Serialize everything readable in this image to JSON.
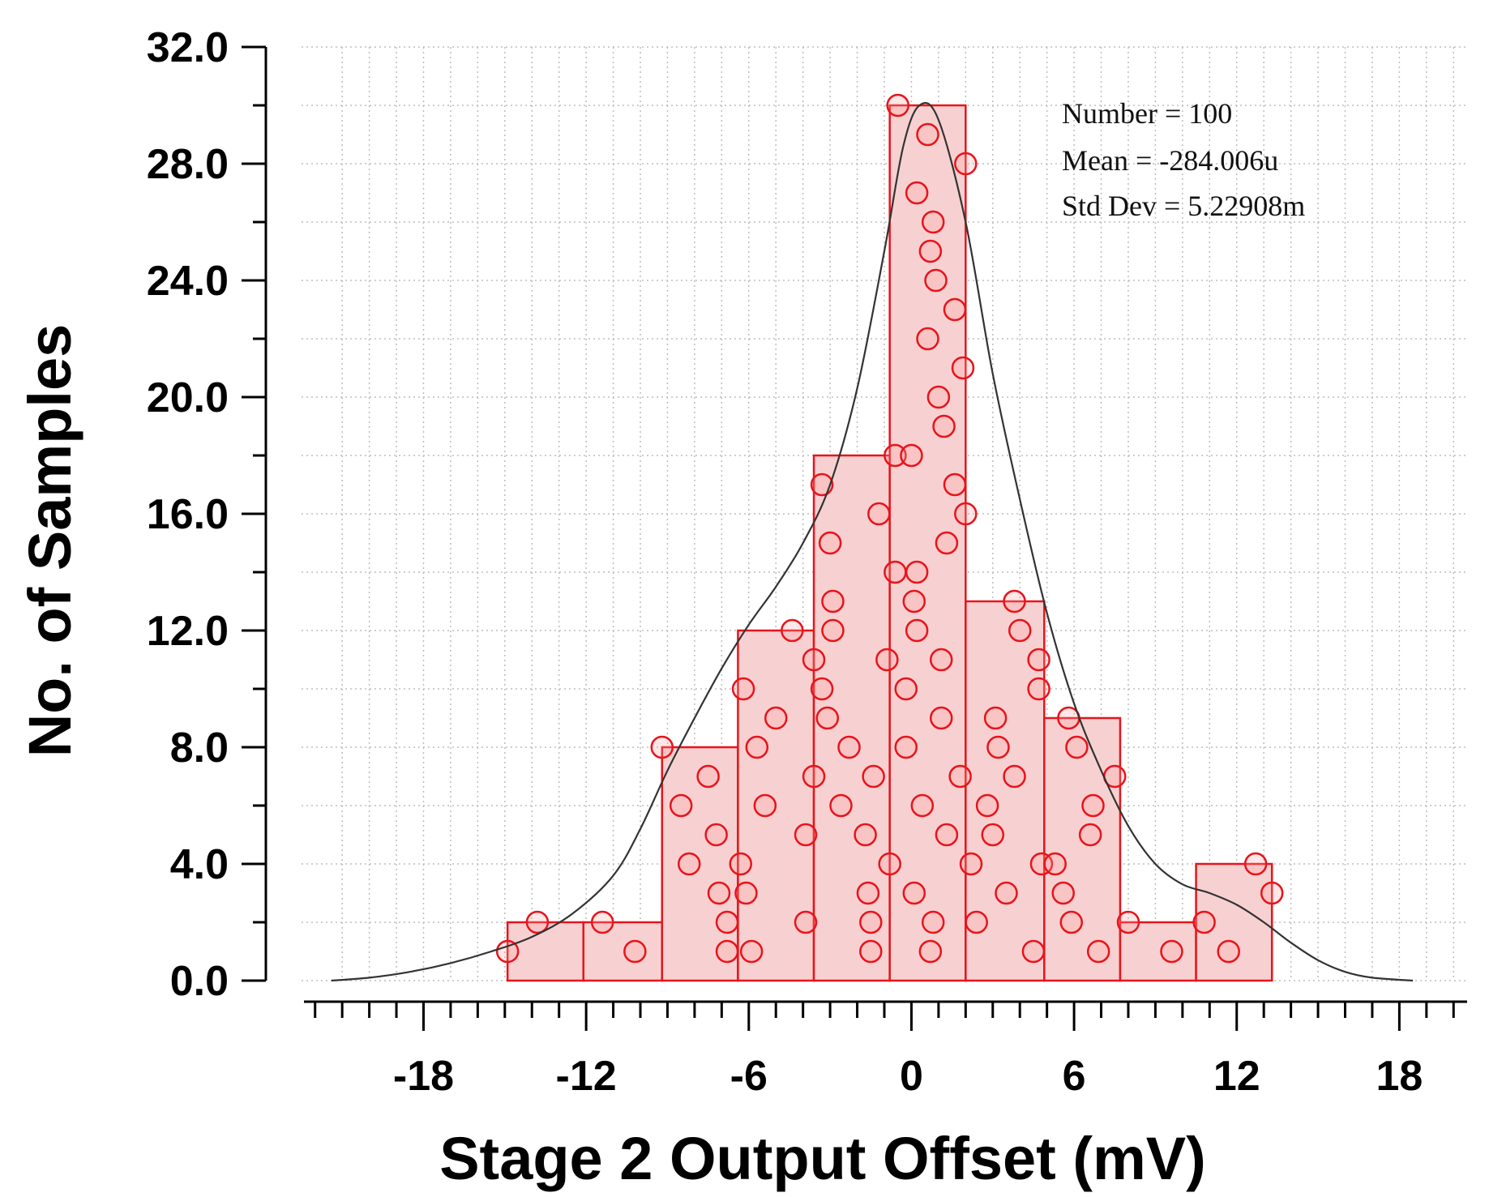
{
  "chart_data": {
    "type": "histogram",
    "xlabel": "Stage 2 Output Offset (mV)",
    "ylabel": "No. of Samples",
    "xlim": [
      -22.5,
      20.5
    ],
    "ylim": [
      0,
      32
    ],
    "x_ticks": [
      -18,
      -12,
      -6,
      0,
      6,
      12,
      18
    ],
    "x_tick_labels": [
      "-18",
      "-12",
      "-6",
      "0",
      "6",
      "12",
      "18"
    ],
    "y_ticks": [
      0,
      4,
      8,
      12,
      16,
      20,
      24,
      28,
      32
    ],
    "y_tick_labels": [
      "0.0",
      "4.0",
      "8.0",
      "12.0",
      "16.0",
      "20.0",
      "24.0",
      "28.0",
      "32.0"
    ],
    "grid": true,
    "bins": [
      {
        "x0": -14.9,
        "x1": -12.1,
        "count": 2
      },
      {
        "x0": -12.1,
        "x1": -9.2,
        "count": 2
      },
      {
        "x0": -9.2,
        "x1": -6.4,
        "count": 8
      },
      {
        "x0": -6.4,
        "x1": -3.6,
        "count": 12
      },
      {
        "x0": -3.6,
        "x1": -0.8,
        "count": 18
      },
      {
        "x0": -0.8,
        "x1": 2.0,
        "count": 30
      },
      {
        "x0": 2.0,
        "x1": 4.9,
        "count": 13
      },
      {
        "x0": 4.9,
        "x1": 7.7,
        "count": 9
      },
      {
        "x0": 7.7,
        "x1": 10.5,
        "count": 2
      },
      {
        "x0": 10.5,
        "x1": 13.3,
        "count": 4
      }
    ],
    "samples": [
      [
        -14.9,
        1
      ],
      [
        -13.8,
        2
      ],
      [
        -11.4,
        2
      ],
      [
        -10.2,
        1
      ],
      [
        -9.2,
        8
      ],
      [
        -8.5,
        6
      ],
      [
        -8.2,
        4
      ],
      [
        -7.5,
        7
      ],
      [
        -7.2,
        5
      ],
      [
        -7.1,
        3
      ],
      [
        -6.8,
        2
      ],
      [
        -6.8,
        1
      ],
      [
        -6.3,
        4
      ],
      [
        -6.2,
        10
      ],
      [
        -6.1,
        3
      ],
      [
        -5.9,
        1
      ],
      [
        -5.7,
        8
      ],
      [
        -5.4,
        6
      ],
      [
        -5.0,
        9
      ],
      [
        -4.4,
        12
      ],
      [
        -3.9,
        5
      ],
      [
        -3.9,
        2
      ],
      [
        -3.6,
        11
      ],
      [
        -3.6,
        7
      ],
      [
        -3.3,
        17
      ],
      [
        -3.3,
        10
      ],
      [
        -3.1,
        9
      ],
      [
        -3.0,
        15
      ],
      [
        -2.9,
        13
      ],
      [
        -2.9,
        12
      ],
      [
        -2.6,
        6
      ],
      [
        -2.3,
        8
      ],
      [
        -1.7,
        5
      ],
      [
        -1.6,
        3
      ],
      [
        -1.5,
        2
      ],
      [
        -1.5,
        1
      ],
      [
        -1.4,
        7
      ],
      [
        -1.2,
        16
      ],
      [
        -0.9,
        11
      ],
      [
        -0.8,
        4
      ],
      [
        -0.6,
        14
      ],
      [
        -0.6,
        18
      ],
      [
        -0.5,
        30
      ],
      [
        -0.2,
        8
      ],
      [
        -0.2,
        10
      ],
      [
        0.0,
        18
      ],
      [
        0.1,
        3
      ],
      [
        0.1,
        13
      ],
      [
        0.2,
        12
      ],
      [
        0.2,
        14
      ],
      [
        0.2,
        27
      ],
      [
        0.4,
        6
      ],
      [
        0.6,
        29
      ],
      [
        0.6,
        22
      ],
      [
        0.7,
        1
      ],
      [
        0.7,
        25
      ],
      [
        0.8,
        2
      ],
      [
        0.8,
        26
      ],
      [
        0.9,
        24
      ],
      [
        1.0,
        20
      ],
      [
        1.1,
        9
      ],
      [
        1.1,
        11
      ],
      [
        1.2,
        19
      ],
      [
        1.3,
        15
      ],
      [
        1.3,
        5
      ],
      [
        1.6,
        23
      ],
      [
        1.6,
        17
      ],
      [
        1.8,
        7
      ],
      [
        1.9,
        21
      ],
      [
        2.0,
        16
      ],
      [
        2.0,
        28
      ],
      [
        2.2,
        4
      ],
      [
        2.4,
        2
      ],
      [
        2.8,
        6
      ],
      [
        3.0,
        5
      ],
      [
        3.1,
        9
      ],
      [
        3.2,
        8
      ],
      [
        3.5,
        3
      ],
      [
        3.8,
        7
      ],
      [
        3.8,
        13
      ],
      [
        4.0,
        12
      ],
      [
        4.5,
        1
      ],
      [
        4.7,
        11
      ],
      [
        4.7,
        10
      ],
      [
        4.8,
        4
      ],
      [
        5.3,
        4
      ],
      [
        5.6,
        3
      ],
      [
        5.8,
        9
      ],
      [
        5.9,
        2
      ],
      [
        6.1,
        8
      ],
      [
        6.6,
        5
      ],
      [
        6.7,
        6
      ],
      [
        6.9,
        1
      ],
      [
        7.5,
        7
      ],
      [
        8.0,
        2
      ],
      [
        9.6,
        1
      ],
      [
        10.8,
        2
      ],
      [
        11.7,
        1
      ],
      [
        12.7,
        4
      ],
      [
        13.3,
        3
      ]
    ],
    "fit_curve": {
      "type": "density",
      "points": [
        [
          -21.4,
          0.0
        ],
        [
          -20.0,
          0.1
        ],
        [
          -18.5,
          0.3
        ],
        [
          -17.0,
          0.6
        ],
        [
          -15.5,
          1.0
        ],
        [
          -14.0,
          1.5
        ],
        [
          -12.5,
          2.3
        ],
        [
          -11.0,
          3.6
        ],
        [
          -10.0,
          5.2
        ],
        [
          -9.0,
          7.2
        ],
        [
          -8.0,
          9.0
        ],
        [
          -7.0,
          10.7
        ],
        [
          -6.0,
          12.2
        ],
        [
          -5.0,
          13.5
        ],
        [
          -4.0,
          15.0
        ],
        [
          -3.0,
          17.0
        ],
        [
          -2.0,
          20.3
        ],
        [
          -1.0,
          25.0
        ],
        [
          -0.3,
          28.6
        ],
        [
          0.3,
          30.0
        ],
        [
          1.0,
          29.5
        ],
        [
          2.0,
          26.0
        ],
        [
          3.0,
          20.8
        ],
        [
          4.0,
          16.5
        ],
        [
          5.0,
          12.6
        ],
        [
          6.0,
          9.5
        ],
        [
          7.0,
          7.2
        ],
        [
          8.0,
          5.3
        ],
        [
          9.0,
          4.0
        ],
        [
          10.0,
          3.3
        ],
        [
          11.0,
          3.0
        ],
        [
          12.0,
          2.6
        ],
        [
          13.0,
          2.0
        ],
        [
          14.0,
          1.3
        ],
        [
          15.0,
          0.7
        ],
        [
          16.0,
          0.3
        ],
        [
          17.0,
          0.1
        ],
        [
          18.5,
          0.0
        ]
      ]
    },
    "annotations": [
      "Number = 100",
      "Mean = -284.006u",
      "Std Dev = 5.22908m"
    ],
    "colors": {
      "bar_fill": "#f7d1d1",
      "bar_edge": "#e8141c",
      "marker": "#e8141c",
      "curve": "#333333",
      "grid": "#bdbdbd",
      "axis": "#000000"
    }
  }
}
